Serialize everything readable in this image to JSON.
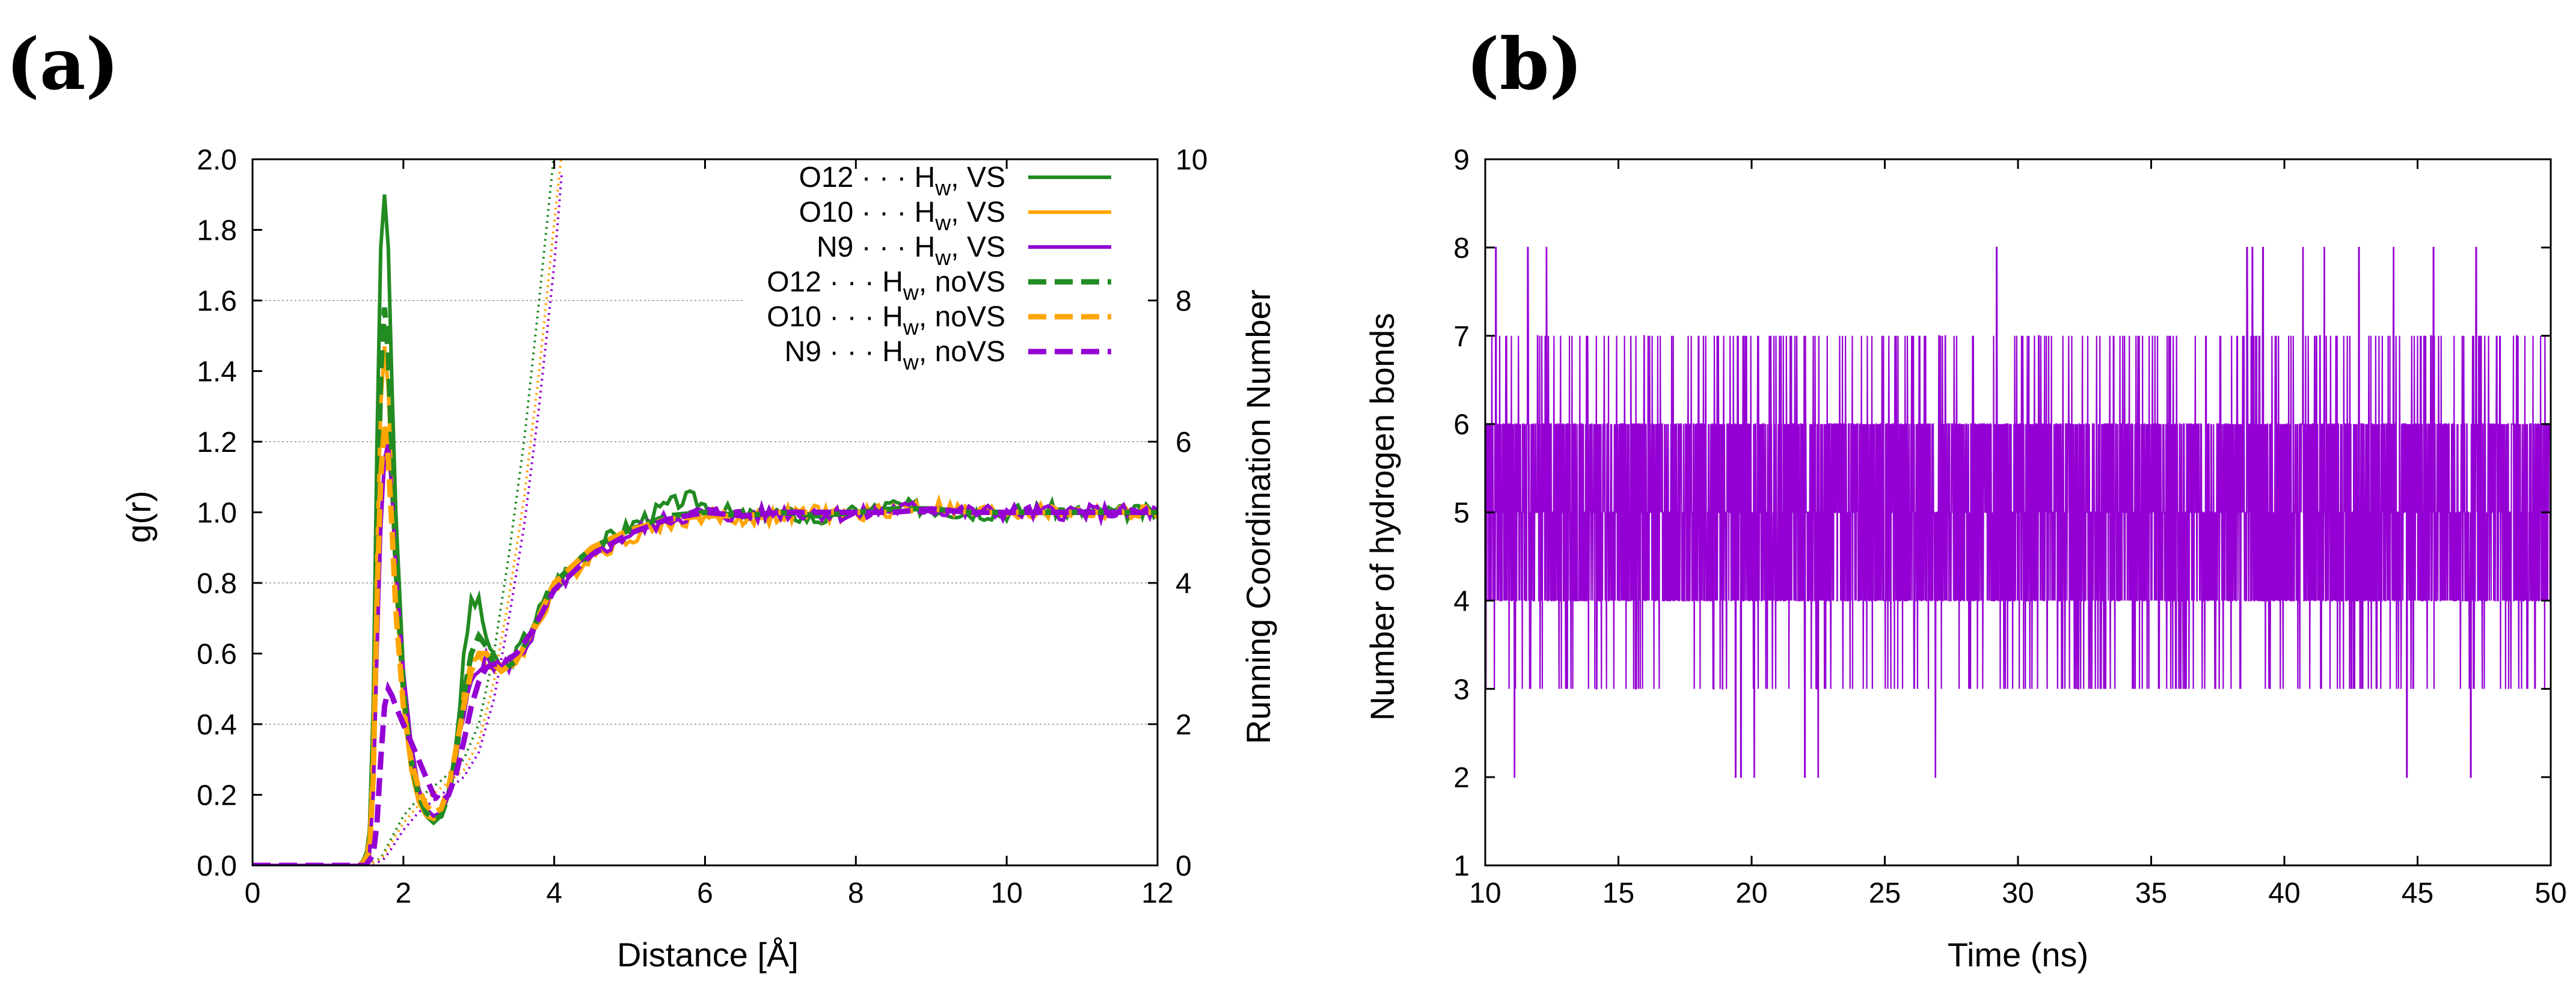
{
  "panels": [
    {
      "label": "(a)"
    },
    {
      "label": "(b)"
    }
  ],
  "chart_data": [
    {
      "type": "line",
      "title": "",
      "xlabel": "Distance [Å]",
      "ylabel": "g(r)",
      "y2label": "Running Coordination Number",
      "xlim": [
        0,
        12
      ],
      "ylim": [
        0,
        2.0
      ],
      "y2lim": [
        0,
        10
      ],
      "x_ticks": [
        "0",
        "2",
        "4",
        "6",
        "8",
        "10",
        "12"
      ],
      "y_ticks": [
        "0.0",
        "0.2",
        "0.4",
        "0.6",
        "0.8",
        "1.0",
        "1.2",
        "1.4",
        "1.6",
        "1.8",
        "2.0"
      ],
      "y2_ticks": [
        "0",
        "2",
        "4",
        "6",
        "8",
        "10"
      ],
      "grid": "horizontal at y2 = 2, 4, 6, 8",
      "legend_position": "top-right",
      "series": [
        {
          "name": "O12 · · · Hw, VS",
          "label_main": "O12 · · · H",
          "label_sub": "w",
          "label_tail": ", VS",
          "color": "#228b22",
          "style": "solid",
          "x": [
            0,
            1.4,
            1.5,
            1.55,
            1.6,
            1.65,
            1.7,
            1.75,
            1.8,
            1.85,
            1.9,
            2.0,
            2.1,
            2.2,
            2.3,
            2.4,
            2.5,
            2.6,
            2.7,
            2.8,
            2.9,
            3.0,
            3.1,
            3.2,
            3.3,
            3.5,
            3.7,
            4.0,
            4.5,
            5.0,
            5.5,
            5.8,
            6.0,
            6.5,
            7.0,
            7.5,
            8.0,
            8.5,
            9.0,
            9.5,
            10.0,
            10.5,
            11.0,
            11.5,
            12.0
          ],
          "y": [
            0,
            0,
            0.02,
            0.1,
            0.45,
            1.2,
            1.75,
            1.9,
            1.75,
            1.35,
            1.0,
            0.55,
            0.3,
            0.18,
            0.14,
            0.12,
            0.14,
            0.2,
            0.35,
            0.58,
            0.75,
            0.74,
            0.65,
            0.58,
            0.56,
            0.6,
            0.68,
            0.8,
            0.9,
            0.96,
            1.02,
            1.04,
            1.02,
            0.99,
            1.0,
            0.98,
            1.0,
            1.02,
            1.01,
            1.0,
            1.0,
            1.01,
            1.0,
            1.0,
            1.0
          ]
        },
        {
          "name": "O10 · · · Hw, VS",
          "label_main": "O10 · · · H",
          "label_sub": "w",
          "label_tail": ", VS",
          "color": "#ffa500",
          "style": "solid",
          "x": [
            0,
            1.4,
            1.5,
            1.55,
            1.6,
            1.65,
            1.7,
            1.75,
            1.8,
            1.85,
            1.9,
            2.0,
            2.1,
            2.2,
            2.3,
            2.4,
            2.5,
            2.6,
            2.7,
            2.8,
            2.9,
            3.0,
            3.1,
            3.2,
            3.3,
            3.5,
            3.7,
            4.0,
            4.5,
            5.0,
            5.5,
            6.0,
            6.5,
            7.0,
            7.5,
            8.0,
            8.5,
            9.0,
            9.5,
            10.0,
            10.5,
            11.0,
            11.5,
            12.0
          ],
          "y": [
            0,
            0,
            0.02,
            0.08,
            0.35,
            0.9,
            1.3,
            1.47,
            1.35,
            1.05,
            0.8,
            0.45,
            0.27,
            0.18,
            0.14,
            0.13,
            0.15,
            0.2,
            0.32,
            0.48,
            0.58,
            0.6,
            0.58,
            0.55,
            0.55,
            0.58,
            0.65,
            0.78,
            0.88,
            0.93,
            0.97,
            0.99,
            0.98,
            0.99,
            1.0,
            0.99,
            1.01,
            1.02,
            1.0,
            1.0,
            1.0,
            1.0,
            1.0,
            1.0
          ]
        },
        {
          "name": "N9 · · · Hw, VS",
          "label_main": "N9 · · · H",
          "label_sub": "w",
          "label_tail": ", VS",
          "color": "#9400d3",
          "style": "solid",
          "x": [
            0,
            1.45,
            1.55,
            1.6,
            1.65,
            1.7,
            1.75,
            1.8,
            1.85,
            1.9,
            2.0,
            2.1,
            2.2,
            2.3,
            2.4,
            2.5,
            2.6,
            2.7,
            2.8,
            2.9,
            3.0,
            3.1,
            3.2,
            3.3,
            3.5,
            3.7,
            4.0,
            4.5,
            5.0,
            5.5,
            6.0,
            6.5,
            7.0,
            7.5,
            8.0,
            8.5,
            9.0,
            9.5,
            10.0,
            10.5,
            11.0,
            11.5,
            12.0
          ],
          "y": [
            0,
            0,
            0.03,
            0.2,
            0.6,
            0.95,
            1.15,
            1.2,
            1.05,
            0.85,
            0.55,
            0.35,
            0.22,
            0.16,
            0.14,
            0.15,
            0.2,
            0.3,
            0.42,
            0.52,
            0.57,
            0.58,
            0.57,
            0.56,
            0.58,
            0.65,
            0.78,
            0.88,
            0.94,
            0.98,
            1.0,
            0.99,
            1.0,
            1.0,
            0.99,
            1.01,
            1.01,
            1.0,
            1.0,
            1.0,
            1.0,
            1.0,
            1.0
          ]
        },
        {
          "name": "O12 · · · Hw, noVS",
          "label_main": "O12 · · · H",
          "label_sub": "w",
          "label_tail": ", noVS",
          "color": "#228b22",
          "style": "dashed",
          "x": [
            0,
            1.45,
            1.55,
            1.6,
            1.65,
            1.7,
            1.75,
            1.8,
            1.85,
            1.9,
            2.0,
            2.1,
            2.2,
            2.3,
            2.4,
            2.5,
            2.6,
            2.7,
            2.8,
            2.9,
            3.0,
            3.1,
            3.2,
            3.3,
            3.5,
            3.7,
            4.0,
            4.5,
            5.0,
            5.5,
            6.0,
            6.5,
            7.0,
            7.5,
            8.0,
            8.5,
            9.0,
            9.5,
            10.0,
            10.5,
            11.0,
            11.5,
            12.0
          ],
          "y": [
            0,
            0,
            0.05,
            0.3,
            0.9,
            1.4,
            1.58,
            1.45,
            1.15,
            0.85,
            0.5,
            0.3,
            0.2,
            0.15,
            0.13,
            0.14,
            0.2,
            0.32,
            0.48,
            0.6,
            0.65,
            0.62,
            0.57,
            0.55,
            0.58,
            0.66,
            0.8,
            0.9,
            0.95,
            0.99,
            1.0,
            0.99,
            1.0,
            0.99,
            1.0,
            1.01,
            1.01,
            1.0,
            1.0,
            1.0,
            1.0,
            1.0,
            1.0
          ]
        },
        {
          "name": "O10 · · · Hw, noVS",
          "label_main": "O10 · · · H",
          "label_sub": "w",
          "label_tail": ", noVS",
          "color": "#ffa500",
          "style": "dashed",
          "x": [
            0,
            1.45,
            1.55,
            1.6,
            1.65,
            1.7,
            1.75,
            1.8,
            1.85,
            1.9,
            2.0,
            2.1,
            2.2,
            2.3,
            2.4,
            2.5,
            2.6,
            2.7,
            2.8,
            2.9,
            3.0,
            3.1,
            3.2,
            3.3,
            3.5,
            3.7,
            4.0,
            4.5,
            5.0,
            5.5,
            6.0,
            6.5,
            7.0,
            7.5,
            8.0,
            8.5,
            9.0,
            9.5,
            10.0,
            10.5,
            11.0,
            11.5,
            12.0
          ],
          "y": [
            0,
            0,
            0.04,
            0.25,
            0.75,
            1.1,
            1.25,
            1.15,
            0.95,
            0.72,
            0.45,
            0.3,
            0.22,
            0.17,
            0.15,
            0.16,
            0.22,
            0.33,
            0.45,
            0.55,
            0.6,
            0.6,
            0.57,
            0.55,
            0.58,
            0.66,
            0.8,
            0.9,
            0.95,
            0.98,
            0.99,
            0.99,
            1.0,
            1.0,
            1.0,
            1.0,
            1.01,
            1.0,
            1.0,
            1.0,
            1.0,
            1.0,
            1.0
          ]
        },
        {
          "name": "N9 · · · Hw, noVS",
          "label_main": "N9 · · · H",
          "label_sub": "w",
          "label_tail": ", noVS",
          "color": "#9400d3",
          "style": "dashed",
          "x": [
            0,
            1.5,
            1.6,
            1.65,
            1.7,
            1.75,
            1.8,
            1.85,
            1.9,
            2.0,
            2.1,
            2.2,
            2.3,
            2.4,
            2.5,
            2.6,
            2.7,
            2.8,
            2.9,
            3.0,
            3.1,
            3.2,
            3.3,
            3.5,
            3.7,
            4.0,
            4.5,
            5.0,
            5.5,
            6.0,
            6.5,
            7.0,
            7.5,
            8.0,
            8.5,
            9.0,
            9.5,
            10.0,
            10.5,
            11.0,
            11.5,
            12.0
          ],
          "y": [
            0,
            0,
            0.03,
            0.12,
            0.3,
            0.45,
            0.5,
            0.48,
            0.45,
            0.4,
            0.35,
            0.3,
            0.25,
            0.2,
            0.18,
            0.2,
            0.26,
            0.35,
            0.45,
            0.52,
            0.56,
            0.57,
            0.57,
            0.6,
            0.66,
            0.78,
            0.88,
            0.94,
            0.98,
            1.0,
            0.99,
            1.0,
            1.0,
            1.0,
            1.0,
            1.01,
            1.0,
            1.0,
            1.0,
            1.0,
            1.0,
            1.0
          ]
        }
      ],
      "coordination_series": [
        {
          "name": "O12 · · · Hw, VS",
          "color": "#228b22",
          "x": [
            0,
            1.5,
            1.7,
            1.8,
            2.0,
            2.2,
            2.5,
            2.8,
            3.0,
            3.2,
            3.4,
            3.6,
            3.8,
            4.0
          ],
          "y": [
            0,
            0,
            0.1,
            0.3,
            0.7,
            0.95,
            1.2,
            1.5,
            2.0,
            3.0,
            4.4,
            6.0,
            8.0,
            10.1
          ]
        },
        {
          "name": "O10 · · · Hw, VS",
          "color": "#ffa500",
          "x": [
            0,
            1.5,
            1.7,
            1.8,
            2.0,
            2.2,
            2.5,
            2.8,
            3.0,
            3.2,
            3.4,
            3.6,
            3.8,
            4.0,
            4.1
          ],
          "y": [
            0,
            0,
            0.08,
            0.25,
            0.6,
            0.85,
            1.1,
            1.35,
            1.75,
            2.6,
            3.8,
            5.2,
            7.0,
            9.1,
            10.1
          ]
        },
        {
          "name": "N9 · · · Hw, VS",
          "color": "#9400d3",
          "x": [
            0,
            1.6,
            1.75,
            1.85,
            2.0,
            2.2,
            2.5,
            2.8,
            3.0,
            3.2,
            3.4,
            3.6,
            3.8,
            4.0,
            4.1
          ],
          "y": [
            0,
            0,
            0.1,
            0.25,
            0.5,
            0.75,
            1.0,
            1.25,
            1.6,
            2.35,
            3.5,
            4.8,
            6.5,
            8.5,
            9.8
          ]
        }
      ]
    },
    {
      "type": "line",
      "title": "",
      "xlabel": "Time (ns)",
      "ylabel": "Number of hydrogen bonds",
      "xlim": [
        10,
        50
      ],
      "ylim": [
        1,
        9
      ],
      "x_ticks": [
        "10",
        "15",
        "20",
        "25",
        "30",
        "35",
        "40",
        "45",
        "50"
      ],
      "y_ticks": [
        "1",
        "2",
        "3",
        "4",
        "5",
        "6",
        "7",
        "8",
        "9"
      ],
      "color": "#9400d3",
      "typical_range": [
        4,
        6
      ],
      "occasional_values": [
        3,
        7
      ],
      "spikes_to_8_ns": [
        10.4,
        11.6,
        12.3,
        29.2,
        38.6,
        38.8,
        39.2,
        40.7,
        41.5,
        42.8,
        44.1,
        45.6,
        47.2
      ],
      "dips_to_2_ns": [
        11.1,
        19.4,
        19.6,
        20.1,
        22.0,
        22.5,
        26.9,
        44.6,
        47.0
      ]
    }
  ]
}
